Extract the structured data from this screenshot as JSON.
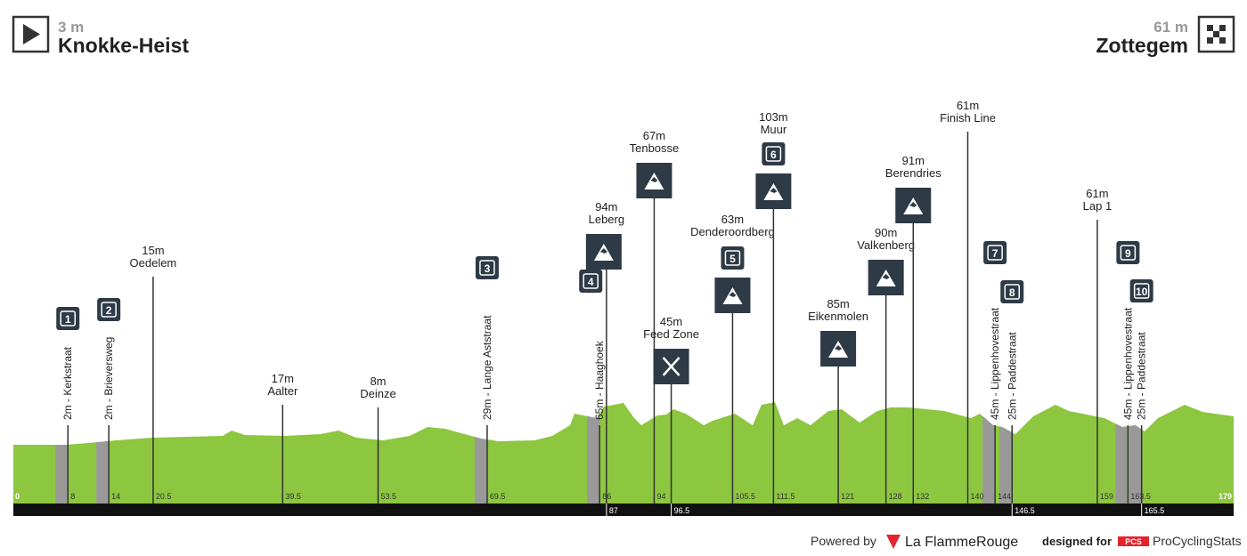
{
  "header": {
    "start_elevation": "3 m",
    "start_name": "Knokke-Heist",
    "finish_elevation": "61 m",
    "finish_name": "Zottegem"
  },
  "start_km": 0,
  "finish_km": 179,
  "markers": [
    {
      "kind": "sector",
      "km": 8,
      "badge": "1",
      "label": "2m - Kerkstraat"
    },
    {
      "kind": "sector",
      "km": 14,
      "badge": "2",
      "label": "2m - Brieversweg"
    },
    {
      "kind": "place",
      "km": 20.5,
      "elevation": "15m",
      "name": "Oedelem"
    },
    {
      "kind": "place",
      "km": 39.5,
      "elevation": "17m",
      "name": "Aalter"
    },
    {
      "kind": "place",
      "km": 53.5,
      "elevation": "8m",
      "name": "Deinze"
    },
    {
      "kind": "sector",
      "km": 69.5,
      "badge": "3",
      "label": "29m - Lange Aststraat"
    },
    {
      "kind": "sector",
      "km": 86,
      "badge": "4",
      "label": "65m - Haaghoek"
    },
    {
      "kind": "climb",
      "km": 87,
      "elevation": "94m",
      "name": "Leberg"
    },
    {
      "kind": "climb",
      "km": 94,
      "elevation": "67m",
      "name": "Tenbosse"
    },
    {
      "kind": "feed",
      "km": 96.5,
      "elevation": "45m",
      "name": "Feed Zone"
    },
    {
      "kind": "climb",
      "km": 105.5,
      "elevation": "63m",
      "name": "Denderoordberg",
      "badge": "5"
    },
    {
      "kind": "climb",
      "km": 111.5,
      "elevation": "103m",
      "name": "Muur",
      "badge": "6"
    },
    {
      "kind": "climb",
      "km": 121,
      "elevation": "85m",
      "name": "Eikenmolen"
    },
    {
      "kind": "climb",
      "km": 128,
      "elevation": "90m",
      "name": "Valkenberg"
    },
    {
      "kind": "climb",
      "km": 132,
      "elevation": "91m",
      "name": "Berendries"
    },
    {
      "kind": "place",
      "km": 140,
      "elevation": "61m",
      "name": "Finish Line"
    },
    {
      "kind": "sector",
      "km": 144,
      "badge": "7",
      "label": "45m - Lippenhovestraat"
    },
    {
      "kind": "sector",
      "km": 146.5,
      "badge": "8",
      "label": "25m - Paddestraat"
    },
    {
      "kind": "place",
      "km": 159,
      "elevation": "61m",
      "name": "Lap 1"
    },
    {
      "kind": "sector",
      "km": 163.5,
      "badge": "9",
      "label": "45m - Lippenhovestraat"
    },
    {
      "kind": "sector",
      "km": 165.5,
      "badge": "10",
      "label": "25m - Paddestraat"
    }
  ],
  "footer": {
    "powered": "Powered by",
    "brand": "La FlammeRouge",
    "designed": "designed for",
    "pcs": "PCS",
    "site": "ProCyclingStats"
  }
}
